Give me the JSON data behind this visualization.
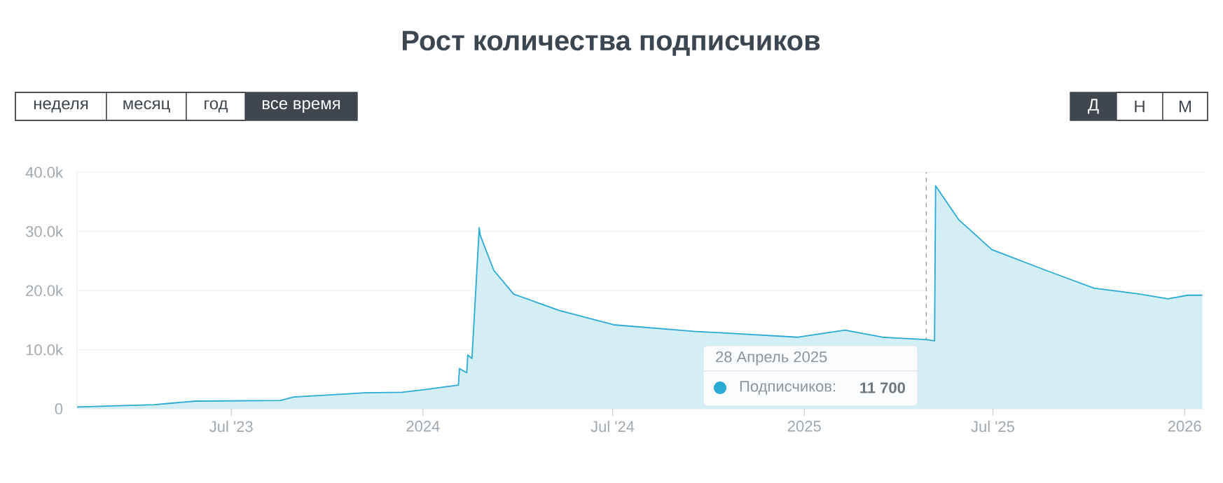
{
  "chart_data": {
    "type": "area",
    "title": "Рост количества подписчиков",
    "x": [
      "2023-02-03",
      "2023-04-18",
      "2023-05-28",
      "2023-08-17",
      "2023-08-30",
      "2023-11-06",
      "2023-12-12",
      "2024-01-01",
      "2024-02-04",
      "2024-02-05",
      "2024-02-12",
      "2024-02-13",
      "2024-02-17",
      "2024-02-24",
      "2024-02-25",
      "2024-03-09",
      "2024-03-28",
      "2024-05-11",
      "2024-07-02",
      "2024-09-17",
      "2024-12-26",
      "2025-02-09",
      "2025-03-17",
      "2025-04-28",
      "2025-05-06",
      "2025-05-07",
      "2025-05-29",
      "2025-06-30",
      "2025-08-21",
      "2025-10-06",
      "2025-11-19",
      "2025-12-16",
      "2026-01-04",
      "2026-01-18"
    ],
    "series": [
      {
        "name": "Подписчиков:",
        "color": "#29abd4",
        "values": [
          300,
          700,
          1300,
          1400,
          2000,
          2700,
          2800,
          3200,
          4000,
          6800,
          6100,
          9100,
          8500,
          30600,
          29300,
          23400,
          19400,
          16600,
          14200,
          13100,
          12100,
          13300,
          12100,
          11700,
          11500,
          37700,
          32000,
          26900,
          23400,
          20400,
          19400,
          18600,
          19200,
          19200
        ]
      }
    ],
    "xlim": [
      "2023-02-03",
      "2026-01-19"
    ],
    "ylim": [
      0,
      40000
    ],
    "xticks": [
      {
        "value": "2023-07-01",
        "label": "Jul '23"
      },
      {
        "value": "2024-01-01",
        "label": "2024"
      },
      {
        "value": "2024-07-01",
        "label": "Jul '24"
      },
      {
        "value": "2025-01-01",
        "label": "2025"
      },
      {
        "value": "2025-07-01",
        "label": "Jul '25"
      },
      {
        "value": "2026-01-01",
        "label": "2026"
      }
    ],
    "yticks": [
      0,
      {
        "value": 10000,
        "label": "10.0k"
      },
      {
        "value": 20000,
        "label": "20.0k"
      },
      {
        "value": 30000,
        "label": "30.0k"
      },
      {
        "value": 40000,
        "label": "40.0k"
      }
    ],
    "grid": "y",
    "ref_lines": [
      {
        "axis": "x",
        "value": "2025-04-28",
        "line_style": "dashed",
        "color": "#9aa3ab"
      }
    ],
    "annotations": [
      "неделя",
      "месяц",
      "год",
      "все время",
      "Д",
      "Н",
      "М",
      "28 Апрель 2025",
      "11 700"
    ]
  }
}
